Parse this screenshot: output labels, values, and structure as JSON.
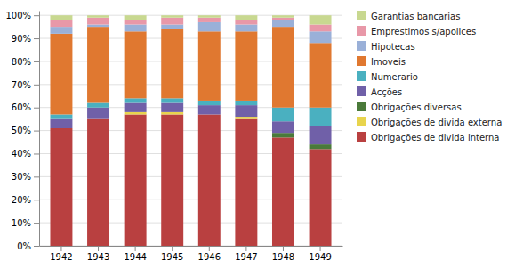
{
  "chart_data": {
    "type": "bar",
    "stacked": true,
    "grid": true,
    "legend": "right",
    "categories": [
      "1942",
      "1943",
      "1944",
      "1945",
      "1946",
      "1947",
      "1948",
      "1949"
    ],
    "series": [
      {
        "name": "Obrigações de divida interna",
        "color": "#b94040",
        "values": [
          51,
          55,
          57,
          57,
          57,
          55,
          47,
          42
        ]
      },
      {
        "name": "Obrigações de divida externa",
        "color": "#e8d44d",
        "values": [
          0,
          0,
          1,
          1,
          0,
          1,
          0,
          0
        ]
      },
      {
        "name": "Obrigações diversas",
        "color": "#4a7a3a",
        "values": [
          0,
          0,
          0,
          0,
          0,
          0,
          2,
          2
        ]
      },
      {
        "name": "Acções",
        "color": "#7060a8",
        "values": [
          4,
          5,
          4,
          4,
          4,
          5,
          5,
          8
        ]
      },
      {
        "name": "Numerario",
        "color": "#4ab0c0",
        "values": [
          2,
          2,
          2,
          2,
          2,
          2,
          6,
          8
        ]
      },
      {
        "name": "Imoveis",
        "color": "#e07830",
        "values": [
          35,
          33,
          29,
          30,
          30,
          30,
          35,
          28
        ]
      },
      {
        "name": "Hipotecas",
        "color": "#9ab0d8",
        "values": [
          3,
          1,
          3,
          2,
          4,
          3,
          3,
          5
        ]
      },
      {
        "name": "Emprestimos s/apolices",
        "color": "#e898a8",
        "values": [
          3,
          3,
          2,
          3,
          2,
          2,
          1,
          3
        ]
      },
      {
        "name": "Garantias bancarias",
        "color": "#c8d890",
        "values": [
          2,
          1,
          2,
          1,
          1,
          2,
          1,
          4
        ]
      }
    ],
    "ylim": [
      0,
      102
    ],
    "yticks": [
      {
        "value": 0,
        "label": "0%"
      },
      {
        "value": 10,
        "label": "10%"
      },
      {
        "value": 20,
        "label": "20%"
      },
      {
        "value": 30,
        "label": "30%"
      },
      {
        "value": 40,
        "label": "40%"
      },
      {
        "value": 50,
        "label": "50%"
      },
      {
        "value": 60,
        "label": "60%"
      },
      {
        "value": 70,
        "label": "70%"
      },
      {
        "value": 80,
        "label": "80%"
      },
      {
        "value": 90,
        "label": "90%"
      },
      {
        "value": 100,
        "label": "100%"
      }
    ]
  }
}
